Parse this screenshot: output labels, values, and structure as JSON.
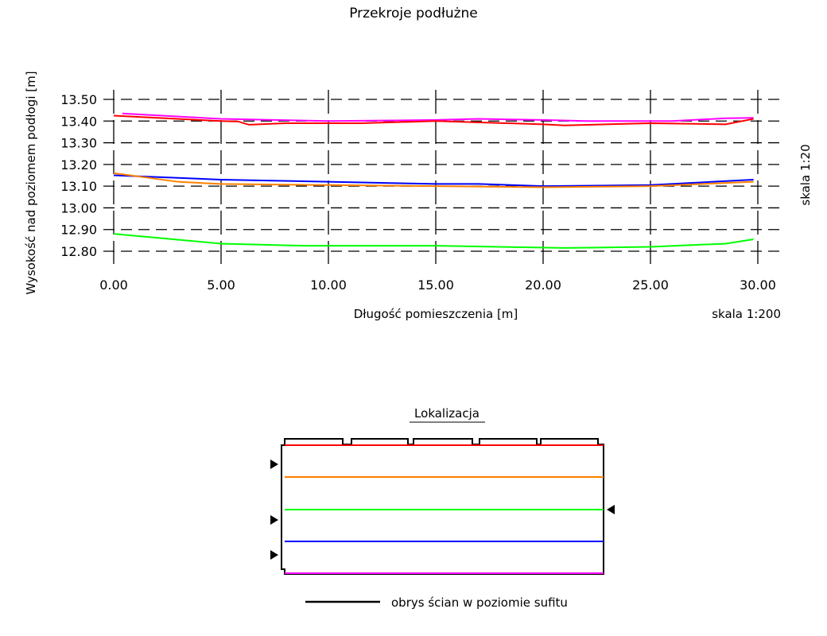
{
  "chart_data": {
    "type": "line",
    "title": "Przekroje podłużne",
    "xlabel": "Długość pomieszczenia [m]",
    "ylabel": "Wysokość nad poziomem podłogi [m]",
    "x_scale_label": "skala 1:200",
    "y_scale_label": "skala 1:20",
    "xlim": [
      0,
      30
    ],
    "ylim": [
      12.8,
      13.5
    ],
    "grid": true,
    "x_ticks": [
      "0.00",
      "5.00",
      "10.00",
      "15.00",
      "20.00",
      "25.00",
      "30.00"
    ],
    "y_ticks": [
      "13.50",
      "13.40",
      "13.30",
      "13.20",
      "13.10",
      "13.00",
      "12.90",
      "12.80"
    ],
    "series": [
      {
        "color": "#ff00ff",
        "points": [
          [
            0.4,
            13.435
          ],
          [
            5,
            13.41
          ],
          [
            10,
            13.4
          ],
          [
            15,
            13.405
          ],
          [
            17,
            13.41
          ],
          [
            20,
            13.405
          ],
          [
            22,
            13.4
          ],
          [
            26,
            13.4
          ],
          [
            28.5,
            13.413
          ],
          [
            29.8,
            13.415
          ]
        ]
      },
      {
        "color": "#ff0000",
        "points": [
          [
            0,
            13.425
          ],
          [
            5,
            13.4
          ],
          [
            5.8,
            13.398
          ],
          [
            6.3,
            13.383
          ],
          [
            8,
            13.39
          ],
          [
            11.5,
            13.39
          ],
          [
            15,
            13.4
          ],
          [
            20,
            13.385
          ],
          [
            21,
            13.38
          ],
          [
            25,
            13.39
          ],
          [
            28.5,
            13.385
          ],
          [
            29.8,
            13.41
          ]
        ]
      },
      {
        "color": "#0000ff",
        "points": [
          [
            0,
            13.15
          ],
          [
            5,
            13.13
          ],
          [
            10,
            13.12
          ],
          [
            15,
            13.11
          ],
          [
            17,
            13.11
          ],
          [
            20,
            13.1
          ],
          [
            25,
            13.105
          ],
          [
            29.8,
            13.13
          ]
        ]
      },
      {
        "color": "#ff8000",
        "points": [
          [
            0,
            13.16
          ],
          [
            3,
            13.12
          ],
          [
            5,
            13.11
          ],
          [
            10,
            13.105
          ],
          [
            15,
            13.1
          ],
          [
            20,
            13.095
          ],
          [
            25,
            13.1
          ],
          [
            29.8,
            13.12
          ]
        ]
      },
      {
        "color": "#00ff00",
        "points": [
          [
            0,
            12.88
          ],
          [
            5,
            12.835
          ],
          [
            9,
            12.825
          ],
          [
            15,
            12.825
          ],
          [
            21,
            12.815
          ],
          [
            25,
            12.82
          ],
          [
            28.5,
            12.835
          ],
          [
            29.8,
            12.855
          ]
        ]
      }
    ]
  },
  "location": {
    "title": "Lokalizacja",
    "legend_label": "obrys ścian w poziomie sufitu",
    "section_colors": [
      "#ff0000",
      "#ff8000",
      "#00ff00",
      "#0000ff",
      "#ff00ff"
    ]
  }
}
